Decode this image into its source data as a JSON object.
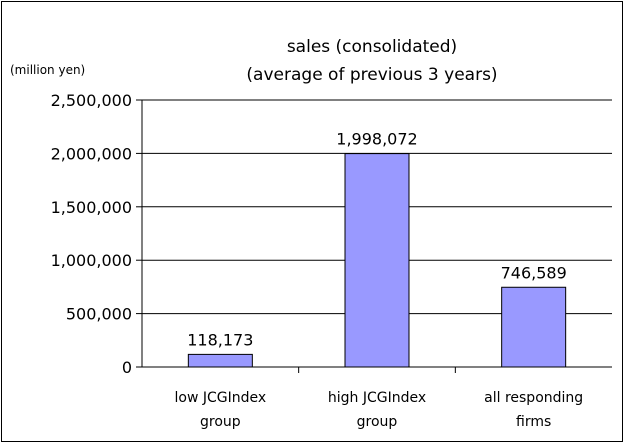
{
  "chart_data": {
    "type": "bar",
    "title_line1": "sales (consolidated)",
    "title_line2": "(average of previous 3 years)",
    "unit_label": "(million yen)",
    "categories": [
      [
        "low JCGIndex",
        "group"
      ],
      [
        "high JCGIndex",
        "group"
      ],
      [
        "all responding",
        "firms"
      ]
    ],
    "values": [
      118173,
      1998072,
      746589
    ],
    "value_labels": [
      "118,173",
      "1,998,072",
      "746,589"
    ],
    "yticks": [
      "0",
      "500,000",
      "1,000,000",
      "1,500,000",
      "2,000,000",
      "2,500,000"
    ],
    "ylim": [
      0,
      2500000
    ],
    "grid": true,
    "bar_color": "#9999ff"
  }
}
